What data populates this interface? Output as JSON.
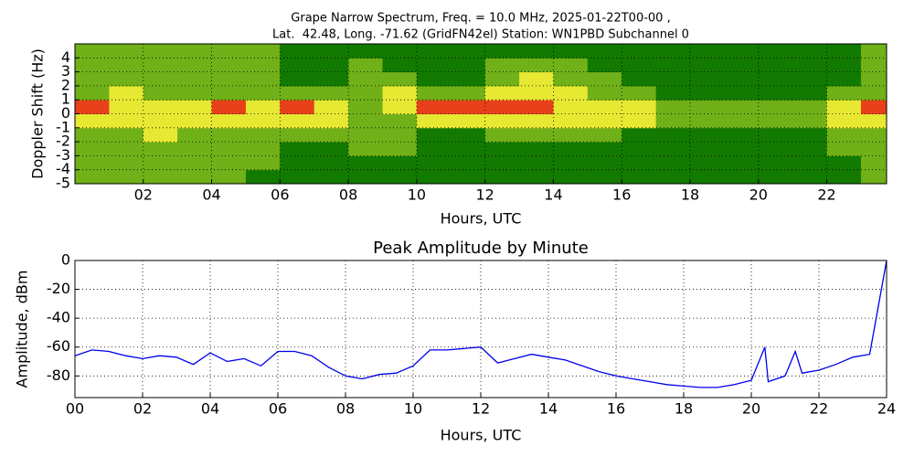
{
  "chart_data": [
    {
      "type": "heatmap",
      "title": [
        "Grape Narrow Spectrum, Freq. = 10.0 MHz, 2025-01-22T00-00 ,",
        "Lat.  42.48, Long. -71.62 (GridFN42el) Station: WN1PBD Subchannel 0"
      ],
      "xlabel": "Hours, UTC",
      "ylabel": "Doppler Shift (Hz)",
      "x": [
        0,
        1,
        2,
        3,
        4,
        5,
        6,
        7,
        8,
        9,
        10,
        11,
        12,
        13,
        14,
        15,
        16,
        17,
        18,
        19,
        20,
        21,
        22,
        23
      ],
      "y": [
        -4.5,
        -3.5,
        -2.5,
        -1.5,
        -0.5,
        0.5,
        1.5,
        2.5,
        3.5,
        4.5
      ],
      "z": [
        [
          1,
          1,
          1,
          1,
          1,
          0,
          0,
          0,
          0,
          0,
          0,
          0,
          0,
          0,
          0,
          0,
          0,
          0,
          0,
          0,
          0,
          0,
          0,
          1
        ],
        [
          1,
          1,
          1,
          1,
          1,
          1,
          0,
          0,
          0,
          0,
          0,
          0,
          0,
          0,
          0,
          0,
          0,
          0,
          0,
          0,
          0,
          0,
          0,
          1
        ],
        [
          1,
          1,
          1,
          1,
          1,
          1,
          0,
          0,
          1,
          1,
          0,
          0,
          0,
          0,
          0,
          0,
          0,
          0,
          0,
          0,
          0,
          0,
          1,
          1
        ],
        [
          1,
          1,
          2,
          1,
          1,
          1,
          1,
          1,
          1,
          1,
          0,
          0,
          1,
          1,
          1,
          1,
          0,
          0,
          0,
          0,
          0,
          0,
          1,
          1
        ],
        [
          2,
          2,
          2,
          2,
          2,
          2,
          2,
          2,
          1,
          1,
          2,
          2,
          2,
          2,
          2,
          2,
          2,
          1,
          1,
          1,
          1,
          1,
          2,
          2
        ],
        [
          3,
          2,
          2,
          2,
          3,
          2,
          3,
          2,
          1,
          2,
          3,
          3,
          3,
          3,
          2,
          2,
          2,
          1,
          1,
          1,
          1,
          1,
          2,
          3
        ],
        [
          1,
          2,
          1,
          1,
          1,
          1,
          1,
          1,
          1,
          2,
          1,
          1,
          2,
          2,
          2,
          1,
          1,
          0,
          0,
          0,
          0,
          0,
          1,
          1
        ],
        [
          1,
          1,
          1,
          1,
          1,
          1,
          0,
          0,
          1,
          1,
          0,
          0,
          1,
          2,
          1,
          1,
          0,
          0,
          0,
          0,
          0,
          0,
          0,
          1
        ],
        [
          1,
          1,
          1,
          1,
          1,
          1,
          0,
          0,
          1,
          0,
          0,
          0,
          1,
          1,
          1,
          0,
          0,
          0,
          0,
          0,
          0,
          0,
          0,
          1
        ],
        [
          1,
          1,
          1,
          1,
          1,
          1,
          0,
          0,
          0,
          0,
          0,
          0,
          0,
          0,
          0,
          0,
          0,
          0,
          0,
          0,
          0,
          0,
          0,
          1
        ]
      ],
      "colors": [
        "#127a00",
        "#70b018",
        "#e6e832",
        "#e8401a"
      ],
      "xlim": [
        0,
        23.75
      ],
      "ylim": [
        -5,
        5
      ],
      "xticks": [
        {
          "value": 2,
          "label": "02"
        },
        {
          "value": 4,
          "label": "04"
        },
        {
          "value": 6,
          "label": "06"
        },
        {
          "value": 8,
          "label": "08"
        },
        10,
        12,
        14,
        16,
        18,
        20,
        22
      ],
      "yticks": [
        -5,
        -4,
        -3,
        -2,
        -1,
        0,
        1,
        2,
        3,
        4
      ],
      "grid": true
    },
    {
      "type": "line",
      "title": "Peak Amplitude by Minute",
      "xlabel": "Hours, UTC",
      "ylabel": "Amplitude, dBm",
      "x": [
        0,
        0.5,
        1,
        1.5,
        2,
        2.5,
        3,
        3.5,
        4,
        4.5,
        5,
        5.5,
        6,
        6.5,
        7,
        7.5,
        8,
        8.5,
        9,
        9.5,
        10,
        10.5,
        11,
        11.5,
        12,
        12.5,
        13,
        13.5,
        14,
        14.5,
        15,
        15.5,
        16,
        16.5,
        17,
        17.5,
        18,
        18.5,
        19,
        19.5,
        20,
        20.4,
        20.5,
        21,
        21.3,
        21.5,
        22,
        22.5,
        23,
        23.5,
        24
      ],
      "values": [
        -66,
        -62,
        -63,
        -66,
        -68,
        -66,
        -67,
        -72,
        -64,
        -70,
        -68,
        -73,
        -63,
        -63,
        -66,
        -74,
        -80,
        -82,
        -79,
        -78,
        -73,
        -62,
        -62,
        -61,
        -60,
        -71,
        -68,
        -65,
        -67,
        -69,
        -73,
        -77,
        -80,
        -82,
        -84,
        -86,
        -87,
        -88,
        -88,
        -86,
        -83,
        -60,
        -84,
        -80,
        -63,
        -78,
        -76,
        -72,
        -67,
        -65,
        0
      ],
      "color": "#0000ee",
      "xlim": [
        0,
        24
      ],
      "ylim": [
        -95,
        0
      ],
      "xticks": [
        {
          "value": 0,
          "label": "00"
        },
        {
          "value": 2,
          "label": "02"
        },
        {
          "value": 4,
          "label": "04"
        },
        {
          "value": 6,
          "label": "06"
        },
        {
          "value": 8,
          "label": "08"
        },
        10,
        12,
        14,
        16,
        18,
        20,
        22,
        24
      ],
      "yticks": [
        0,
        -20,
        -40,
        -60,
        -80
      ],
      "grid": true
    }
  ]
}
